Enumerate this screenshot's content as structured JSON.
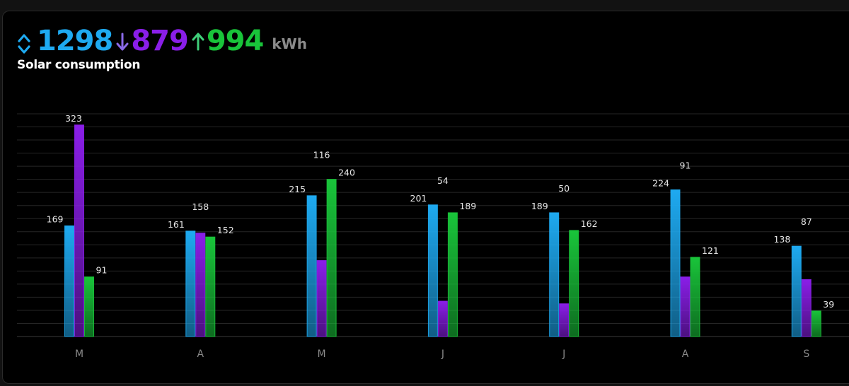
{
  "header": {
    "total": "1298",
    "down": "879",
    "up": "994",
    "unit": "kWh",
    "title": "Solar consumption",
    "icons": {
      "total": "up-down-chevron-icon",
      "down": "arrow-down-icon",
      "up": "arrow-up-icon"
    }
  },
  "colors": {
    "total": "#1eaaf1",
    "down": "#8a1ee8",
    "up": "#19c43a"
  },
  "chart_data": {
    "type": "bar",
    "categories": [
      "M",
      "A",
      "M",
      "J",
      "J",
      "A",
      "S"
    ],
    "series": [
      {
        "values": [
          169,
          161,
          215,
          201,
          189,
          224,
          138
        ],
        "color": "#1eaaf1"
      },
      {
        "values": [
          323,
          158,
          116,
          54,
          50,
          91,
          87
        ],
        "color": "#8a1ee8"
      },
      {
        "values": [
          91,
          152,
          240,
          189,
          162,
          121,
          39
        ],
        "color": "#19c43a"
      }
    ],
    "grid": true,
    "ylim": [
      0,
      340
    ]
  }
}
